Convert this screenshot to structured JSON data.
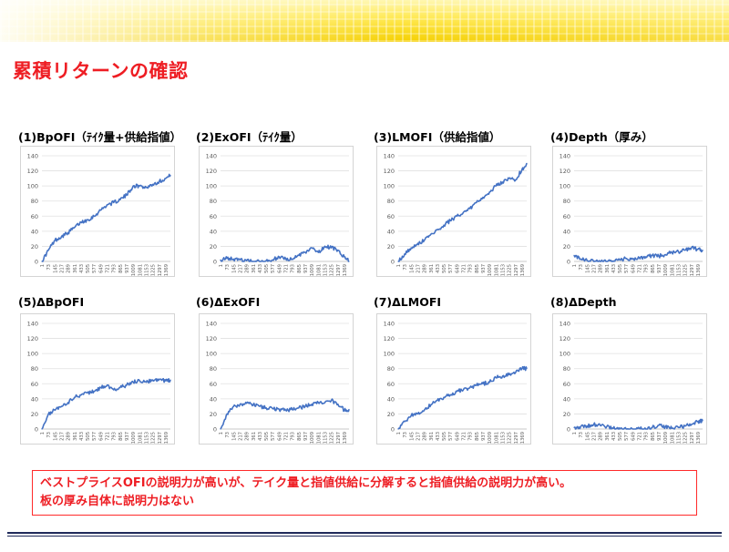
{
  "slide": {
    "title": "累積リターンの確認",
    "note_line1": "ベストプライスOFIの説明力が高いが、テイク量と指値供給に分解すると指値供給の説明力が高い。",
    "note_line2": "板の厚み自体に説明力はない",
    "colors": {
      "title": "#ee1d23",
      "note_border": "#ff2a2a",
      "series": "#4472c4",
      "banner": "#ffe84d"
    }
  },
  "chart_data": [
    {
      "type": "line",
      "title": "(1)BpOFI（ﾃｲｸ量+供給指値）",
      "ylim": [
        0,
        140
      ],
      "yticks": [
        0,
        20,
        40,
        60,
        80,
        100,
        120,
        140
      ],
      "xticks": [
        "1",
        "73",
        "145",
        "217",
        "289",
        "361",
        "433",
        "505",
        "577",
        "649",
        "721",
        "793",
        "865",
        "937",
        "1009",
        "1081",
        "1153",
        "1225",
        "1297",
        "1369"
      ],
      "x": [
        1,
        73,
        145,
        217,
        289,
        361,
        433,
        505,
        577,
        649,
        721,
        793,
        865,
        937,
        1009,
        1081,
        1153,
        1225,
        1297,
        1369,
        1420
      ],
      "y": [
        0,
        15,
        28,
        33,
        38,
        45,
        52,
        55,
        60,
        68,
        75,
        78,
        82,
        88,
        100,
        100,
        98,
        102,
        106,
        110,
        114
      ]
    },
    {
      "type": "line",
      "title": "(2)ExOFI（ﾃｲｸ量）",
      "ylim": [
        0,
        140
      ],
      "yticks": [
        0,
        20,
        40,
        60,
        80,
        100,
        120,
        140
      ],
      "xticks": [
        "1",
        "73",
        "145",
        "217",
        "289",
        "361",
        "433",
        "505",
        "577",
        "649",
        "721",
        "793",
        "865",
        "937",
        "1009",
        "1081",
        "1153",
        "1225",
        "1297",
        "1369"
      ],
      "x": [
        1,
        73,
        145,
        217,
        289,
        361,
        433,
        505,
        577,
        649,
        721,
        793,
        865,
        937,
        1009,
        1081,
        1153,
        1225,
        1297,
        1369,
        1420
      ],
      "y": [
        2,
        4,
        3,
        2,
        1,
        0,
        0,
        1,
        2,
        6,
        4,
        3,
        8,
        12,
        18,
        12,
        20,
        18,
        15,
        6,
        0
      ]
    },
    {
      "type": "line",
      "title": "(3)LMOFI（供給指値）",
      "ylim": [
        0,
        140
      ],
      "yticks": [
        0,
        20,
        40,
        60,
        80,
        100,
        120,
        140
      ],
      "xticks": [
        "1",
        "73",
        "145",
        "217",
        "289",
        "361",
        "433",
        "505",
        "577",
        "649",
        "721",
        "793",
        "865",
        "937",
        "1009",
        "1081",
        "1153",
        "1225",
        "1297",
        "1369"
      ],
      "x": [
        1,
        73,
        145,
        217,
        289,
        361,
        433,
        505,
        577,
        649,
        721,
        793,
        865,
        937,
        1009,
        1081,
        1153,
        1225,
        1297,
        1369,
        1420
      ],
      "y": [
        0,
        10,
        18,
        24,
        28,
        36,
        42,
        48,
        54,
        60,
        65,
        70,
        78,
        85,
        92,
        100,
        105,
        110,
        108,
        122,
        130
      ]
    },
    {
      "type": "line",
      "title": "(4)Depth（厚み）",
      "ylim": [
        0,
        140
      ],
      "yticks": [
        0,
        20,
        40,
        60,
        80,
        100,
        120,
        140
      ],
      "xticks": [
        "1",
        "73",
        "145",
        "217",
        "289",
        "361",
        "433",
        "505",
        "577",
        "649",
        "721",
        "793",
        "865",
        "937",
        "1009",
        "1081",
        "1153",
        "1225",
        "1297",
        "1369"
      ],
      "x": [
        1,
        73,
        145,
        217,
        289,
        361,
        433,
        505,
        577,
        649,
        721,
        793,
        865,
        937,
        1009,
        1081,
        1153,
        1225,
        1297,
        1369,
        1420
      ],
      "y": [
        8,
        3,
        1,
        0,
        0,
        0,
        0,
        2,
        4,
        3,
        5,
        6,
        8,
        7,
        9,
        12,
        13,
        15,
        18,
        16,
        15
      ]
    },
    {
      "type": "line",
      "title": "(5)ΔBpOFI",
      "ylim": [
        0,
        140
      ],
      "yticks": [
        0,
        20,
        40,
        60,
        80,
        100,
        120,
        140
      ],
      "xticks": [
        "1",
        "73",
        "145",
        "217",
        "289",
        "361",
        "433",
        "505",
        "577",
        "649",
        "721",
        "793",
        "865",
        "937",
        "1009",
        "1081",
        "1153",
        "1225",
        "1297",
        "1369"
      ],
      "x": [
        1,
        73,
        145,
        217,
        289,
        361,
        433,
        505,
        577,
        649,
        721,
        793,
        865,
        937,
        1009,
        1081,
        1153,
        1225,
        1297,
        1369,
        1420
      ],
      "y": [
        0,
        20,
        25,
        30,
        35,
        42,
        45,
        48,
        50,
        55,
        58,
        52,
        55,
        58,
        62,
        64,
        62,
        65,
        66,
        64,
        65
      ]
    },
    {
      "type": "line",
      "title": "(6)ΔExOFI",
      "ylim": [
        0,
        140
      ],
      "yticks": [
        0,
        20,
        40,
        60,
        80,
        100,
        120,
        140
      ],
      "xticks": [
        "1",
        "73",
        "145",
        "217",
        "289",
        "361",
        "433",
        "505",
        "577",
        "649",
        "721",
        "793",
        "865",
        "937",
        "1009",
        "1081",
        "1153",
        "1225",
        "1297",
        "1369"
      ],
      "x": [
        1,
        73,
        145,
        217,
        289,
        361,
        433,
        505,
        577,
        649,
        721,
        793,
        865,
        937,
        1009,
        1081,
        1153,
        1225,
        1297,
        1369,
        1420
      ],
      "y": [
        0,
        20,
        30,
        33,
        34,
        32,
        30,
        28,
        27,
        26,
        25,
        26,
        28,
        30,
        33,
        35,
        35,
        38,
        33,
        25,
        26
      ]
    },
    {
      "type": "line",
      "title": "(7)ΔLMOFI",
      "ylim": [
        0,
        140
      ],
      "yticks": [
        0,
        20,
        40,
        60,
        80,
        100,
        120,
        140
      ],
      "xticks": [
        "1",
        "73",
        "145",
        "217",
        "289",
        "361",
        "433",
        "505",
        "577",
        "649",
        "721",
        "793",
        "865",
        "937",
        "1009",
        "1081",
        "1153",
        "1225",
        "1297",
        "1369"
      ],
      "x": [
        1,
        73,
        145,
        217,
        289,
        361,
        433,
        505,
        577,
        649,
        721,
        793,
        865,
        937,
        1009,
        1081,
        1153,
        1225,
        1297,
        1369,
        1420
      ],
      "y": [
        0,
        10,
        18,
        20,
        25,
        32,
        38,
        42,
        45,
        50,
        52,
        55,
        58,
        60,
        62,
        68,
        70,
        72,
        75,
        80,
        80
      ]
    },
    {
      "type": "line",
      "title": "(8)ΔDepth",
      "ylim": [
        0,
        140
      ],
      "yticks": [
        0,
        20,
        40,
        60,
        80,
        100,
        120,
        140
      ],
      "xticks": [
        "1",
        "73",
        "145",
        "217",
        "289",
        "361",
        "433",
        "505",
        "577",
        "649",
        "721",
        "793",
        "865",
        "937",
        "1009",
        "1081",
        "1153",
        "1225",
        "1297",
        "1369"
      ],
      "x": [
        1,
        73,
        145,
        217,
        289,
        361,
        433,
        505,
        577,
        649,
        721,
        793,
        865,
        937,
        1009,
        1081,
        1153,
        1225,
        1297,
        1369,
        1420
      ],
      "y": [
        2,
        3,
        4,
        6,
        5,
        3,
        1,
        0,
        0,
        0,
        1,
        0,
        2,
        5,
        3,
        1,
        2,
        4,
        6,
        10,
        11
      ]
    }
  ]
}
